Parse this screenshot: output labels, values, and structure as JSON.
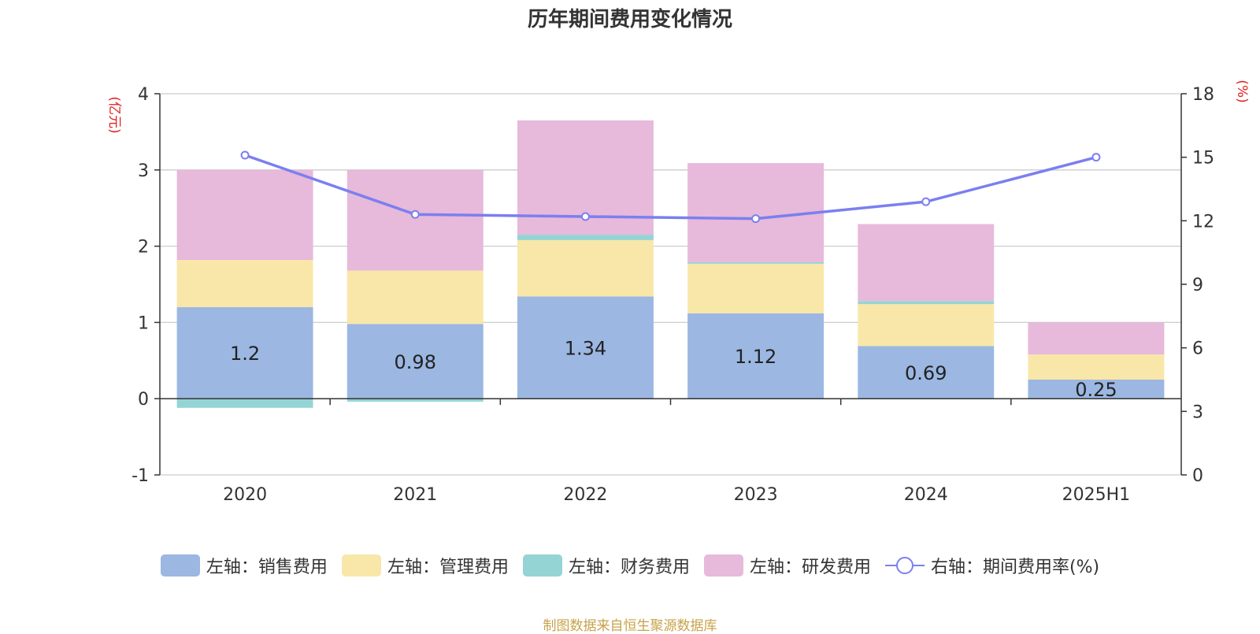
{
  "title": "历年期间费用变化情况",
  "source_note": "制图数据来自恒生聚源数据库",
  "chart_data": {
    "type": "bar",
    "stacked": true,
    "categories": [
      "2020",
      "2021",
      "2022",
      "2023",
      "2024",
      "2025H1"
    ],
    "left_axis": {
      "unit_label": "(亿元)",
      "ylim": [
        -1,
        4
      ],
      "ticks": [
        "-1",
        "0",
        "1",
        "2",
        "3",
        "4"
      ]
    },
    "right_axis": {
      "unit_label": "(%)",
      "ylim": [
        0,
        18
      ],
      "ticks": [
        "0",
        "3",
        "6",
        "9",
        "12",
        "15",
        "18"
      ]
    },
    "grid": true,
    "legend_position": "bottom",
    "series": [
      {
        "name": "左轴：销售费用",
        "axis": "left",
        "type": "bar",
        "color": "#9bb7e2",
        "values": [
          1.2,
          0.98,
          1.34,
          1.12,
          0.69,
          0.25
        ],
        "labels": [
          "1.2",
          "0.98",
          "1.34",
          "1.12",
          "0.69",
          "0.25"
        ]
      },
      {
        "name": "左轴：管理费用",
        "axis": "left",
        "type": "bar",
        "color": "#f8e7a8",
        "values": [
          0.62,
          0.7,
          0.74,
          0.65,
          0.55,
          0.33
        ]
      },
      {
        "name": "左轴：财务费用",
        "axis": "left",
        "type": "bar",
        "color": "#95d4d4",
        "values": [
          -0.12,
          -0.04,
          0.07,
          0.02,
          0.04,
          0.0
        ]
      },
      {
        "name": "左轴：研发费用",
        "axis": "left",
        "type": "bar",
        "color": "#e7b9da",
        "values": [
          1.18,
          1.32,
          1.5,
          1.3,
          1.01,
          0.42
        ]
      },
      {
        "name": "右轴：期间费用率(%)",
        "axis": "right",
        "type": "line",
        "color": "#7b7ff0",
        "values": [
          15.1,
          12.3,
          12.2,
          12.1,
          12.9,
          15.0
        ]
      }
    ]
  }
}
